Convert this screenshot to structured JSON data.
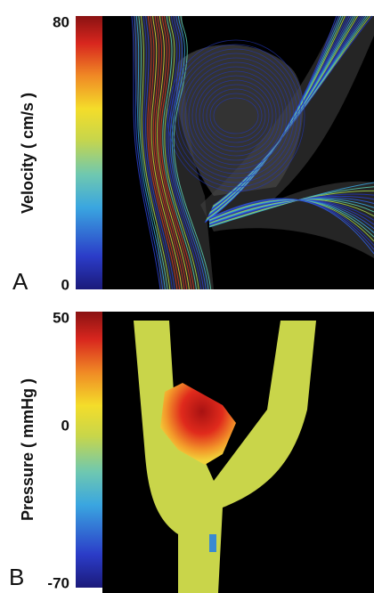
{
  "panels": [
    {
      "letter": "A",
      "colorbar_label": "Velocity  ( cm/s )",
      "ticks": [
        80,
        0
      ]
    },
    {
      "letter": "B",
      "colorbar_label": "Pressure ( mmHg )",
      "ticks": [
        50,
        0,
        -70
      ]
    }
  ]
}
